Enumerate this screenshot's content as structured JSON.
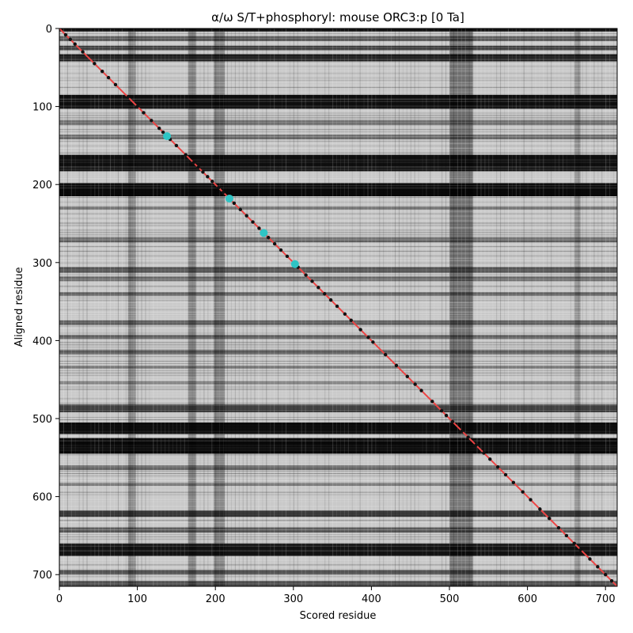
{
  "chart_data": {
    "type": "heatmap",
    "title": "α/ω S/T+phosphoryl: mouse ORC3:p [0 Ta]",
    "xlabel": "Scored residue",
    "ylabel": "Aligned residue",
    "xlim": [
      0,
      715
    ],
    "ylim": [
      715,
      0
    ],
    "x_ticks": [
      "0",
      "100",
      "200",
      "300",
      "400",
      "500",
      "600",
      "700"
    ],
    "y_ticks": [
      "0",
      "100",
      "200",
      "300",
      "400",
      "500",
      "600",
      "700"
    ],
    "colormap": "grayscale (dark = low, light = high)",
    "dark_bands": [
      {
        "from": 0,
        "to": 4,
        "strength": 0.9
      },
      {
        "from": 10,
        "to": 16,
        "strength": 0.55
      },
      {
        "from": 22,
        "to": 28,
        "strength": 0.7
      },
      {
        "from": 33,
        "to": 42,
        "strength": 0.85
      },
      {
        "from": 85,
        "to": 103,
        "strength": 0.92
      },
      {
        "from": 118,
        "to": 124,
        "strength": 0.45
      },
      {
        "from": 136,
        "to": 142,
        "strength": 0.45
      },
      {
        "from": 162,
        "to": 183,
        "strength": 0.92
      },
      {
        "from": 198,
        "to": 215,
        "strength": 0.95
      },
      {
        "from": 228,
        "to": 232,
        "strength": 0.4
      },
      {
        "from": 268,
        "to": 274,
        "strength": 0.45
      },
      {
        "from": 306,
        "to": 313,
        "strength": 0.55
      },
      {
        "from": 318,
        "to": 324,
        "strength": 0.45
      },
      {
        "from": 338,
        "to": 343,
        "strength": 0.45
      },
      {
        "from": 374,
        "to": 380,
        "strength": 0.45
      },
      {
        "from": 393,
        "to": 398,
        "strength": 0.5
      },
      {
        "from": 412,
        "to": 418,
        "strength": 0.45
      },
      {
        "from": 432,
        "to": 436,
        "strength": 0.4
      },
      {
        "from": 452,
        "to": 456,
        "strength": 0.35
      },
      {
        "from": 482,
        "to": 492,
        "strength": 0.7
      },
      {
        "from": 505,
        "to": 520,
        "strength": 0.93
      },
      {
        "from": 525,
        "to": 545,
        "strength": 0.95
      },
      {
        "from": 560,
        "to": 566,
        "strength": 0.45
      },
      {
        "from": 582,
        "to": 586,
        "strength": 0.35
      },
      {
        "from": 618,
        "to": 626,
        "strength": 0.7
      },
      {
        "from": 640,
        "to": 646,
        "strength": 0.55
      },
      {
        "from": 660,
        "to": 676,
        "strength": 0.9
      },
      {
        "from": 694,
        "to": 700,
        "strength": 0.55
      },
      {
        "from": 708,
        "to": 715,
        "strength": 0.6
      }
    ],
    "vertical_dark_bands": [
      {
        "from": 88,
        "to": 98,
        "strength": 0.55
      },
      {
        "from": 165,
        "to": 175,
        "strength": 0.6
      },
      {
        "from": 198,
        "to": 212,
        "strength": 0.6
      },
      {
        "from": 500,
        "to": 530,
        "strength": 0.75
      },
      {
        "from": 660,
        "to": 668,
        "strength": 0.45
      }
    ],
    "diagonal_line": {
      "from": [
        0,
        0
      ],
      "to": [
        715,
        715
      ],
      "color": "#ee4444"
    },
    "diagonal_markers": {
      "color": "#111111",
      "positions": [
        8,
        14,
        20,
        30,
        45,
        55,
        63,
        72,
        88,
        100,
        108,
        118,
        128,
        133,
        142,
        150,
        162,
        172,
        178,
        184,
        190,
        196,
        204,
        210,
        224,
        232,
        240,
        248,
        256,
        268,
        276,
        284,
        292,
        306,
        316,
        324,
        332,
        340,
        348,
        356,
        366,
        374,
        386,
        396,
        402,
        418,
        432,
        446,
        456,
        464,
        478,
        490,
        496,
        504,
        516,
        524,
        534,
        544,
        552,
        562,
        572,
        582,
        594,
        604,
        616,
        628,
        640,
        650,
        660,
        668,
        680,
        690,
        700,
        708
      ]
    },
    "highlight_points": {
      "color": "#2ec4c4",
      "points": [
        {
          "x": 138,
          "y": 138
        },
        {
          "x": 218,
          "y": 218
        },
        {
          "x": 262,
          "y": 262
        },
        {
          "x": 302,
          "y": 302
        }
      ]
    }
  }
}
